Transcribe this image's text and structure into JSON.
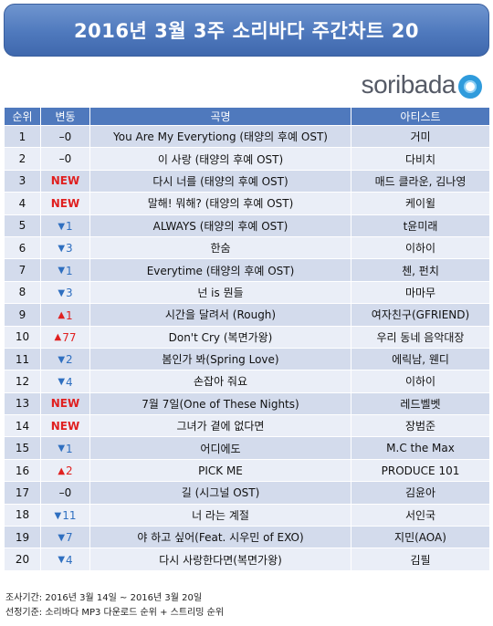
{
  "title": "2016년 3월 3주 소리바다 주간차트 20",
  "logo_text": "soribada",
  "colors": {
    "header": "#4f79bd",
    "row_odd": "#d3dbec",
    "row_even": "#eaeef7",
    "up_new": "#e02020",
    "down": "#2f6fc0",
    "logo_ring": "#2f9bdc"
  },
  "columns": {
    "rank": "순위",
    "change": "변동",
    "song": "곡명",
    "artist": "아티스트"
  },
  "rows": [
    {
      "rank": "1",
      "change_type": "same",
      "change": "–0",
      "song": "You Are My Everytiong (태양의 후예 OST)",
      "artist": "거미"
    },
    {
      "rank": "2",
      "change_type": "same",
      "change": "–0",
      "song": "이 사랑 (태양의 후예 OST)",
      "artist": "다비치"
    },
    {
      "rank": "3",
      "change_type": "new",
      "change": "NEW",
      "song": "다시 너를 (태양의 후예 OST)",
      "artist": "매드 클라운, 김나영"
    },
    {
      "rank": "4",
      "change_type": "new",
      "change": "NEW",
      "song": "말해! 뭐해? (태양의 후예 OST)",
      "artist": "케이윌"
    },
    {
      "rank": "5",
      "change_type": "down",
      "change": "1",
      "song": "ALWAYS (태양의 후예 OST)",
      "artist": "t윤미래"
    },
    {
      "rank": "6",
      "change_type": "down",
      "change": "3",
      "song": "한숨",
      "artist": "이하이"
    },
    {
      "rank": "7",
      "change_type": "down",
      "change": "1",
      "song": "Everytime (태양의 후예 OST)",
      "artist": "첸, 펀치"
    },
    {
      "rank": "8",
      "change_type": "down",
      "change": "3",
      "song": "넌 is 뭔들",
      "artist": "마마무"
    },
    {
      "rank": "9",
      "change_type": "up",
      "change": "1",
      "song": "시간을 달려서 (Rough)",
      "artist": "여자친구(GFRIEND)"
    },
    {
      "rank": "10",
      "change_type": "up",
      "change": "77",
      "song": "Don't Cry (복면가왕)",
      "artist": "우리 동네 음악대장"
    },
    {
      "rank": "11",
      "change_type": "down",
      "change": "2",
      "song": "봄인가 봐(Spring Love)",
      "artist": "에릭남, 웬디"
    },
    {
      "rank": "12",
      "change_type": "down",
      "change": "4",
      "song": "손잡아 줘요",
      "artist": "이하이"
    },
    {
      "rank": "13",
      "change_type": "new",
      "change": "NEW",
      "song": "7월 7일(One of These Nights)",
      "artist": "레드벨벳"
    },
    {
      "rank": "14",
      "change_type": "new",
      "change": "NEW",
      "song": "그녀가 곁에 없다면",
      "artist": "장범준"
    },
    {
      "rank": "15",
      "change_type": "down",
      "change": "1",
      "song": "어디에도",
      "artist": "M.C the Max"
    },
    {
      "rank": "16",
      "change_type": "up",
      "change": "2",
      "song": "PICK ME",
      "artist": "PRODUCE 101"
    },
    {
      "rank": "17",
      "change_type": "same",
      "change": "–0",
      "song": "길 (시그널 OST)",
      "artist": "김윤아"
    },
    {
      "rank": "18",
      "change_type": "down",
      "change": "11",
      "song": "너 라는 계절",
      "artist": "서인국"
    },
    {
      "rank": "19",
      "change_type": "down",
      "change": "7",
      "song": "야 하고 싶어(Feat. 시우민 of EXO)",
      "artist": "지민(AOA)"
    },
    {
      "rank": "20",
      "change_type": "down",
      "change": "4",
      "song": "다시 사랑한다면(복면가왕)",
      "artist": "김필"
    }
  ],
  "footer": {
    "period": "조사기간: 2016년 3월 14일 ~ 2016년 3월 20일",
    "criteria": "선정기준: 소리바다 MP3 다운로드 순위 + 스트리밍 순위"
  }
}
